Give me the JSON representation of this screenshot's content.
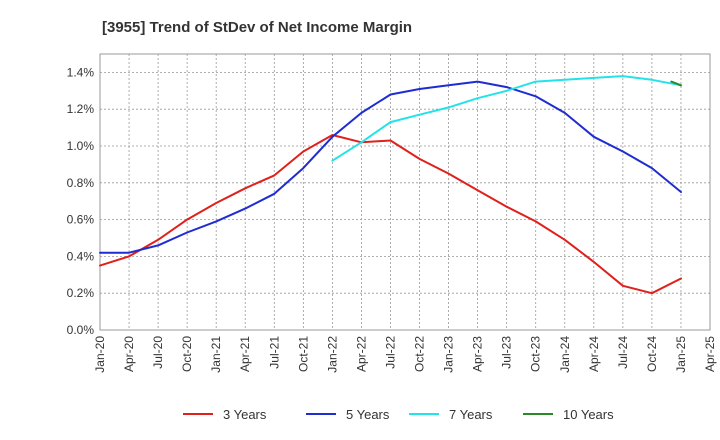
{
  "chart_data": {
    "type": "line",
    "title": "[3955]  Trend of StDev of Net Income Margin",
    "xlabel": "",
    "ylabel": "",
    "x_tick_labels": [
      "Jan-20",
      "Apr-20",
      "Jul-20",
      "Oct-20",
      "Jan-21",
      "Apr-21",
      "Jul-21",
      "Oct-21",
      "Jan-22",
      "Apr-22",
      "Jul-22",
      "Oct-22",
      "Jan-23",
      "Apr-23",
      "Jul-23",
      "Oct-23",
      "Jan-24",
      "Apr-24",
      "Jul-24",
      "Oct-24",
      "Jan-25",
      "Apr-25"
    ],
    "y_tick_labels": [
      "0.0%",
      "0.2%",
      "0.4%",
      "0.6%",
      "0.8%",
      "1.0%",
      "1.2%",
      "1.4%"
    ],
    "ylim": [
      0,
      1.5
    ],
    "y_unit": "%",
    "grid": true,
    "legend_position": "bottom",
    "series": [
      {
        "name": "3 Years",
        "color": "#e0201b",
        "points": [
          [
            "Jan-20",
            0.35
          ],
          [
            "Apr-20",
            0.4
          ],
          [
            "Jul-20",
            0.49
          ],
          [
            "Oct-20",
            0.6
          ],
          [
            "Jan-21",
            0.69
          ],
          [
            "Apr-21",
            0.77
          ],
          [
            "Jul-21",
            0.84
          ],
          [
            "Oct-21",
            0.97
          ],
          [
            "Jan-22",
            1.06
          ],
          [
            "Apr-22",
            1.02
          ],
          [
            "Jul-22",
            1.03
          ],
          [
            "Oct-22",
            0.93
          ],
          [
            "Jan-23",
            0.85
          ],
          [
            "Apr-23",
            0.76
          ],
          [
            "Jul-23",
            0.67
          ],
          [
            "Oct-23",
            0.59
          ],
          [
            "Jan-24",
            0.49
          ],
          [
            "Apr-24",
            0.37
          ],
          [
            "Jul-24",
            0.24
          ],
          [
            "Oct-24",
            0.2
          ],
          [
            "Jan-25",
            0.28
          ]
        ]
      },
      {
        "name": "5 Years",
        "color": "#1f2cd1",
        "points": [
          [
            "Jan-20",
            0.42
          ],
          [
            "Apr-20",
            0.42
          ],
          [
            "Jul-20",
            0.46
          ],
          [
            "Oct-20",
            0.53
          ],
          [
            "Jan-21",
            0.59
          ],
          [
            "Apr-21",
            0.66
          ],
          [
            "Jul-21",
            0.74
          ],
          [
            "Oct-21",
            0.88
          ],
          [
            "Jan-22",
            1.05
          ],
          [
            "Apr-22",
            1.18
          ],
          [
            "Jul-22",
            1.28
          ],
          [
            "Oct-22",
            1.31
          ],
          [
            "Jan-23",
            1.33
          ],
          [
            "Apr-23",
            1.35
          ],
          [
            "Jul-23",
            1.32
          ],
          [
            "Oct-23",
            1.27
          ],
          [
            "Jan-24",
            1.18
          ],
          [
            "Apr-24",
            1.05
          ],
          [
            "Jul-24",
            0.97
          ],
          [
            "Oct-24",
            0.88
          ],
          [
            "Jan-25",
            0.75
          ]
        ]
      },
      {
        "name": "7 Years",
        "color": "#22e3e8",
        "points": [
          [
            "Jan-22",
            0.92
          ],
          [
            "Apr-22",
            1.02
          ],
          [
            "Jul-22",
            1.13
          ],
          [
            "Oct-22",
            1.17
          ],
          [
            "Jan-23",
            1.21
          ],
          [
            "Apr-23",
            1.26
          ],
          [
            "Jul-23",
            1.3
          ],
          [
            "Oct-23",
            1.35
          ],
          [
            "Jan-24",
            1.36
          ],
          [
            "Apr-24",
            1.37
          ],
          [
            "Jul-24",
            1.38
          ],
          [
            "Oct-24",
            1.36
          ],
          [
            "Jan-25",
            1.33
          ]
        ]
      },
      {
        "name": "10 Years",
        "color": "#2a8a2a",
        "points": [
          [
            "Dec-24",
            1.35
          ],
          [
            "Jan-25",
            1.33
          ]
        ]
      }
    ]
  }
}
